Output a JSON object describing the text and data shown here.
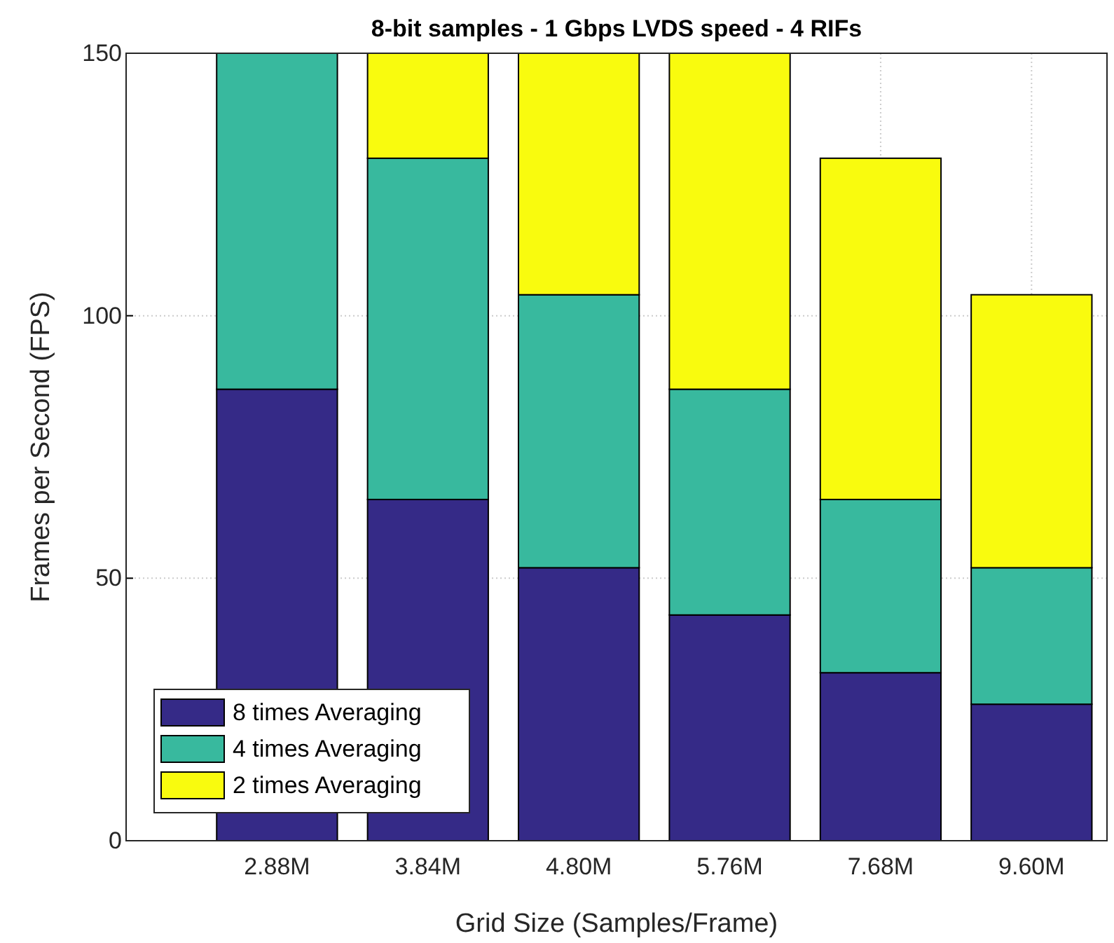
{
  "chart_data": {
    "type": "bar",
    "title": "8-bit samples - 1 Gbps LVDS speed - 4 RIFs",
    "xlabel": "Grid Size (Samples/Frame)",
    "ylabel": "Frames per Second (FPS)",
    "categories": [
      "2.88M",
      "3.84M",
      "4.80M",
      "5.76M",
      "7.68M",
      "9.60M"
    ],
    "stacked": true,
    "series": [
      {
        "name": "8 times Averaging",
        "color": "#352a87",
        "values": [
          86,
          65,
          52,
          43,
          32,
          26
        ]
      },
      {
        "name": "4 times Averaging",
        "color": "#38b99e",
        "values": [
          64,
          65,
          52,
          43,
          33,
          26
        ]
      },
      {
        "name": "2 times Averaging",
        "color": "#f9fb0e",
        "values": [
          0,
          20,
          46,
          64,
          65,
          52
        ]
      }
    ],
    "ylim": [
      0,
      150
    ],
    "yticks": [
      0,
      50,
      100,
      150
    ],
    "grid": true,
    "legend": "bottom left"
  }
}
